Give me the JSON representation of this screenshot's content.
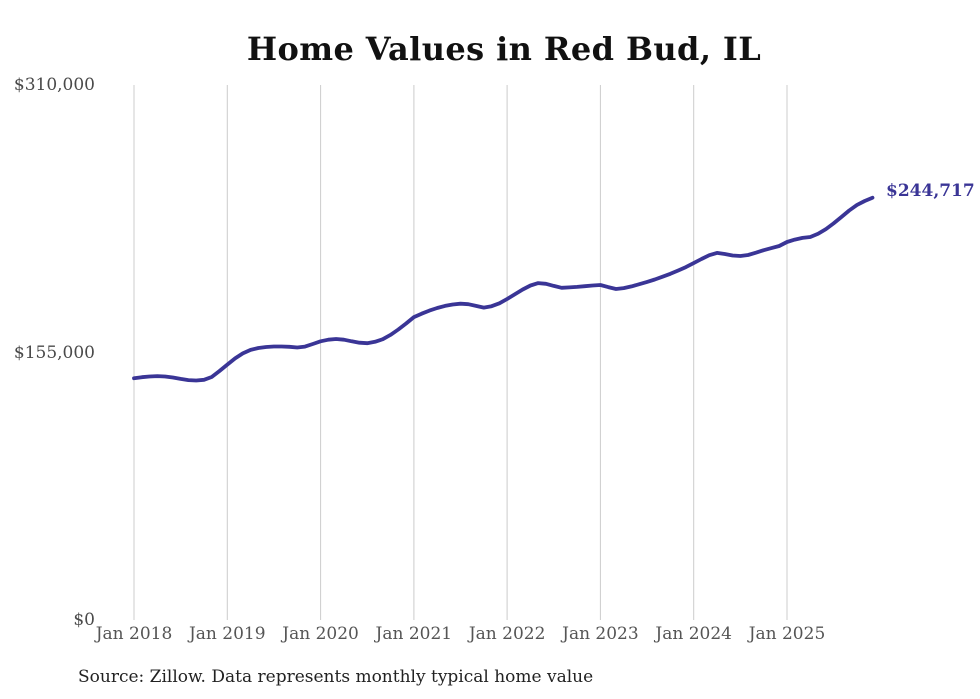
{
  "chart_data": {
    "type": "line",
    "title": "Home Values in Red Bud, IL",
    "xlabel": "",
    "ylabel": "",
    "x_interval": "monthly",
    "x_range": {
      "start": "Jan 2018",
      "end": "Dec 2025"
    },
    "x_labels": [
      "Jan 2018",
      "Jan 2019",
      "Jan 2020",
      "Jan 2021",
      "Jan 2022",
      "Jan 2023",
      "Jan 2024",
      "Jan 2025"
    ],
    "y_ticks": [
      {
        "label": "$310,000",
        "value": 310000
      },
      {
        "label": "$155,000",
        "value": 155000
      },
      {
        "label": "$0",
        "value": 0
      }
    ],
    "ylim": [
      0,
      310000
    ],
    "grid": "vertical-only",
    "legend": "none",
    "series": [
      {
        "name": "Monthly typical home value",
        "color": "#3a3596",
        "values": [
          140100,
          140700,
          141100,
          141300,
          141100,
          140500,
          139700,
          139000,
          138800,
          139200,
          140800,
          144300,
          148000,
          151600,
          154500,
          156500,
          157600,
          158200,
          158500,
          158500,
          158300,
          157900,
          158400,
          159900,
          161500,
          162400,
          162800,
          162400,
          161500,
          160700,
          160400,
          161200,
          162700,
          165200,
          168300,
          171800,
          175500,
          177500,
          179300,
          180800,
          182000,
          182800,
          183300,
          183000,
          182000,
          181000,
          181800,
          183500,
          186000,
          188700,
          191500,
          193800,
          195200,
          194800,
          193600,
          192500,
          192700,
          193000,
          193400,
          193800,
          194100,
          192900,
          191800,
          192300,
          193300,
          194600,
          195900,
          197300,
          198900,
          200600,
          202500,
          204500,
          206800,
          209200,
          211400,
          212700,
          212100,
          211200,
          210900,
          211500,
          212800,
          214300,
          215500,
          216700,
          219000,
          220400,
          221400,
          221900,
          223800,
          226500,
          229800,
          233500,
          237300,
          240500,
          242800,
          244717
        ]
      }
    ],
    "end_label": "$244,717",
    "end_value": 244717,
    "source": "Source: Zillow. Data represents monthly typical home value"
  },
  "colors": {
    "line": "#3a3596",
    "grid": "#cccccc",
    "title_text": "#111111",
    "axis_text": "#555555",
    "source_text": "#222222",
    "background": "#ffffff"
  }
}
